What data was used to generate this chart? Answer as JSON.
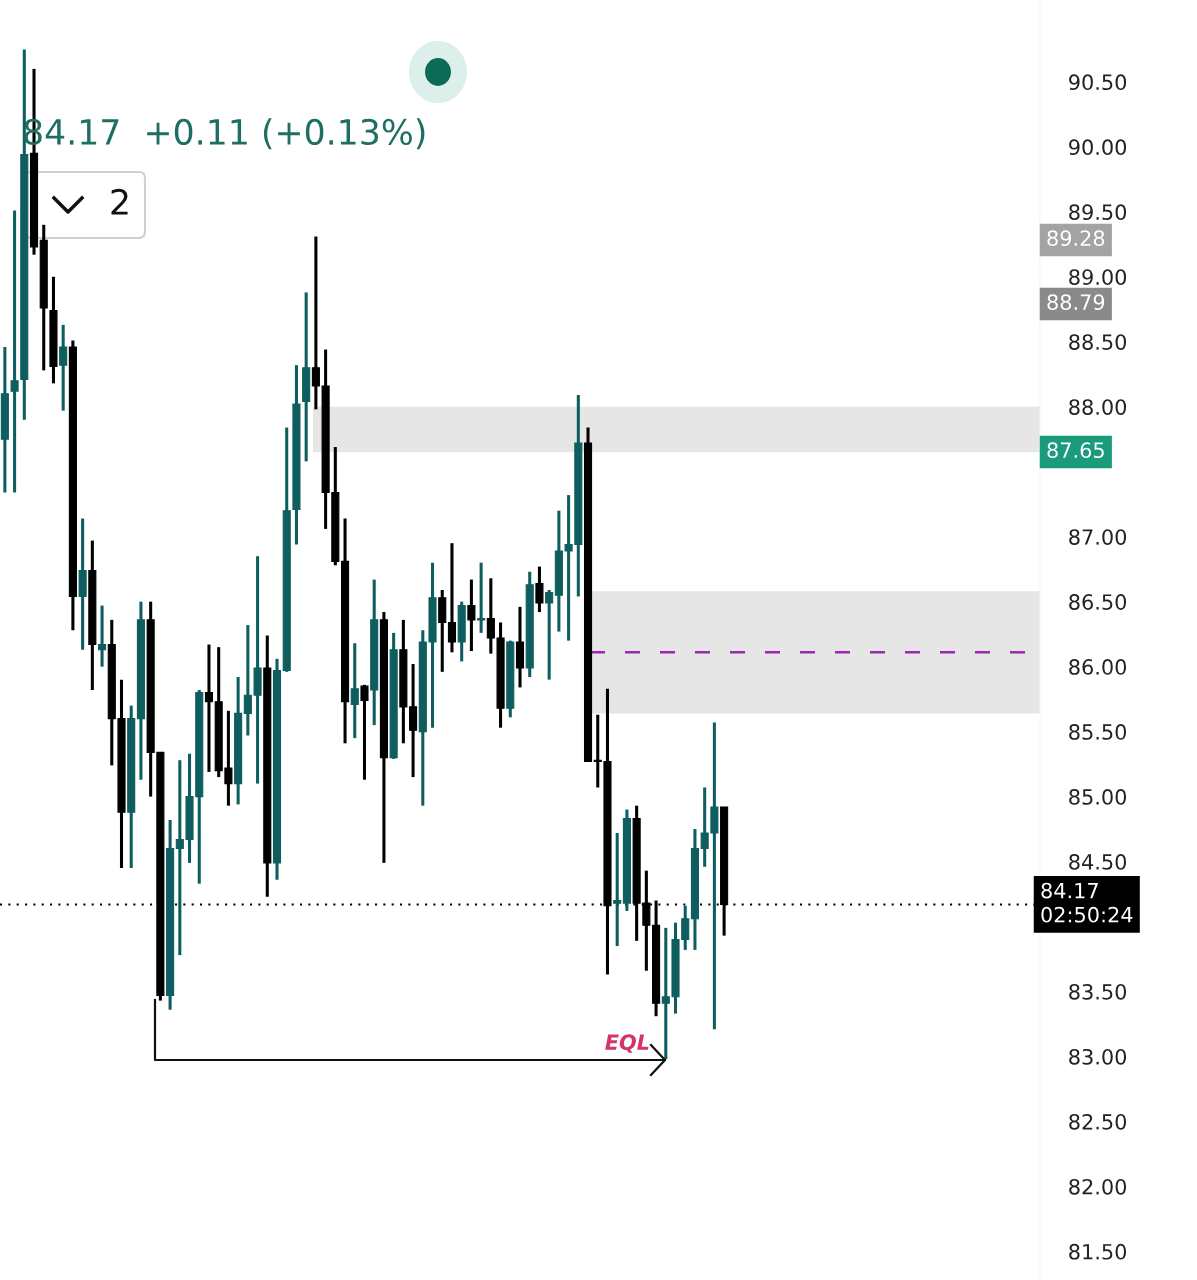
{
  "chart_data": {
    "type": "candlestick",
    "subtitle": "84.17  +0.11 (+0.13%)",
    "categories": [
      null,
      null,
      null,
      null,
      null,
      null,
      null,
      null,
      null,
      null,
      null,
      null,
      null,
      null,
      null,
      null,
      null,
      null,
      null,
      null,
      null,
      null,
      null,
      null,
      null,
      null,
      null,
      null,
      null,
      null,
      null,
      null,
      null,
      null,
      null,
      null,
      null,
      null,
      null,
      null,
      null,
      null,
      null,
      null,
      null,
      null,
      null,
      null,
      null,
      null,
      null,
      null,
      null,
      null,
      null,
      null,
      null,
      null,
      null,
      null,
      null,
      null,
      null,
      null,
      null,
      null,
      null,
      null,
      null,
      null,
      null,
      null,
      null,
      null,
      null,
      null,
      null,
      null,
      null,
      null,
      null,
      null,
      null,
      null,
      null,
      null,
      null,
      null,
      null,
      null,
      null,
      null,
      null,
      null,
      null,
      null,
      null,
      null,
      null,
      null,
      null,
      null,
      null,
      null,
      null,
      null,
      null
    ],
    "ohlc": [
      [
        87.75,
        88.46,
        87.34,
        88.1
      ],
      [
        88.12,
        89.51,
        87.34,
        88.2
      ],
      [
        88.21,
        90.75,
        87.9,
        89.94
      ],
      [
        89.95,
        90.6,
        89.17,
        89.23
      ],
      [
        89.28,
        89.4,
        88.28,
        88.76
      ],
      [
        88.74,
        89.0,
        88.18,
        88.31
      ],
      [
        88.32,
        88.63,
        87.97,
        88.46
      ],
      [
        88.46,
        88.51,
        86.28,
        86.54
      ],
      [
        86.54,
        87.14,
        86.13,
        86.74
      ],
      [
        86.74,
        86.97,
        85.82,
        86.17
      ],
      [
        86.13,
        86.47,
        86.0,
        86.17
      ],
      [
        86.17,
        86.36,
        85.24,
        85.6
      ],
      [
        85.6,
        85.9,
        84.45,
        84.88
      ],
      [
        84.88,
        85.7,
        84.45,
        85.6
      ],
      [
        85.6,
        86.5,
        85.13,
        86.36
      ],
      [
        86.36,
        86.5,
        85.0,
        85.34
      ],
      [
        85.34,
        85.34,
        83.43,
        83.47
      ],
      [
        83.47,
        84.82,
        83.36,
        84.6
      ],
      [
        84.6,
        85.28,
        83.78,
        84.67
      ],
      [
        84.67,
        85.33,
        84.49,
        85.0
      ],
      [
        85.0,
        85.82,
        84.33,
        85.8
      ],
      [
        85.8,
        86.17,
        85.19,
        85.73
      ],
      [
        85.73,
        86.15,
        85.15,
        85.2
      ],
      [
        85.22,
        85.66,
        84.93,
        85.1
      ],
      [
        85.1,
        85.92,
        84.94,
        85.64
      ],
      [
        85.64,
        86.32,
        85.47,
        85.78
      ],
      [
        85.78,
        86.85,
        85.1,
        85.99
      ],
      [
        85.99,
        86.24,
        84.23,
        84.49
      ],
      [
        84.49,
        86.06,
        84.36,
        85.97
      ],
      [
        85.97,
        87.84,
        85.96,
        87.2
      ],
      [
        87.21,
        88.32,
        86.94,
        88.02
      ],
      [
        88.04,
        88.88,
        87.58,
        88.3
      ],
      [
        88.3,
        89.31,
        87.98,
        88.16
      ],
      [
        88.16,
        88.44,
        87.06,
        87.34
      ],
      [
        87.34,
        87.69,
        86.78,
        86.81
      ],
      [
        86.81,
        87.14,
        85.41,
        85.73
      ],
      [
        85.71,
        86.18,
        85.45,
        85.83
      ],
      [
        85.85,
        85.86,
        85.13,
        85.74
      ],
      [
        85.82,
        86.67,
        85.55,
        86.36
      ],
      [
        86.36,
        86.42,
        84.49,
        85.3
      ],
      [
        85.3,
        86.26,
        85.29,
        86.13
      ],
      [
        86.13,
        86.36,
        85.41,
        85.69
      ],
      [
        85.69,
        86.02,
        85.15,
        85.51
      ],
      [
        85.5,
        86.28,
        84.93,
        86.19
      ],
      [
        86.19,
        86.8,
        85.53,
        86.53
      ],
      [
        86.53,
        86.59,
        85.96,
        86.34
      ],
      [
        86.34,
        86.95,
        86.11,
        86.19
      ],
      [
        86.19,
        86.5,
        86.04,
        86.47
      ],
      [
        86.47,
        86.67,
        86.12,
        86.36
      ],
      [
        86.36,
        86.8,
        86.26,
        86.37
      ],
      [
        86.37,
        86.68,
        86.1,
        86.22
      ],
      [
        86.22,
        86.34,
        85.53,
        85.68
      ],
      [
        85.68,
        86.2,
        85.61,
        86.19
      ],
      [
        86.19,
        86.46,
        85.84,
        85.99
      ],
      [
        85.99,
        86.73,
        85.92,
        86.63
      ],
      [
        86.64,
        86.77,
        86.42,
        86.49
      ],
      [
        86.49,
        86.59,
        85.9,
        86.57
      ],
      [
        86.55,
        87.2,
        86.27,
        86.89
      ],
      [
        86.89,
        87.32,
        86.2,
        86.94
      ],
      [
        86.94,
        88.09,
        86.54,
        87.72
      ],
      [
        87.72,
        87.84,
        85.27,
        85.27
      ],
      [
        85.28,
        85.63,
        85.07,
        85.27
      ],
      [
        85.27,
        85.83,
        83.63,
        84.16
      ],
      [
        84.18,
        84.72,
        83.85,
        84.2
      ],
      [
        84.18,
        84.9,
        84.12,
        84.83
      ],
      [
        84.83,
        84.93,
        83.89,
        84.18
      ],
      [
        84.18,
        84.43,
        83.66,
        84.01
      ],
      [
        84.01,
        84.2,
        83.31,
        83.41
      ],
      [
        83.41,
        83.99,
        82.98,
        83.46
      ],
      [
        83.46,
        84.03,
        83.33,
        83.9
      ],
      [
        83.9,
        84.16,
        83.82,
        84.06
      ],
      [
        84.06,
        84.75,
        83.82,
        84.6
      ],
      [
        84.6,
        85.07,
        84.46,
        84.72
      ],
      [
        84.72,
        85.57,
        83.21,
        84.92
      ],
      [
        84.92,
        84.92,
        83.93,
        84.17
      ],
      null,
      null,
      null,
      null,
      null,
      null,
      null,
      null,
      null,
      null,
      null,
      null,
      null,
      null,
      null,
      null,
      null,
      null,
      null,
      null,
      null,
      null,
      null,
      null,
      null,
      null,
      null,
      null,
      null,
      null,
      null,
      null
    ],
    "colors": [
      "#0f5e5f",
      "#0f5e5f",
      "#0f5e5f",
      "#000000",
      "#000000",
      "#000000",
      "#0f5e5f",
      "#000000",
      "#0f5e5f",
      "#000000",
      "#0f5e5f",
      "#000000",
      "#000000",
      "#0f5e5f",
      "#0f5e5f",
      "#000000",
      "#000000",
      "#0f5e5f",
      "#0f5e5f",
      "#0f5e5f",
      "#0f5e5f",
      "#000000",
      "#000000",
      "#000000",
      "#0f5e5f",
      "#0f5e5f",
      "#0f5e5f",
      "#000000",
      "#0f5e5f",
      "#0f5e5f",
      "#0f5e5f",
      "#0f5e5f",
      "#000000",
      "#000000",
      "#000000",
      "#000000",
      "#0f5e5f",
      "#000000",
      "#0f5e5f",
      "#000000",
      "#0f5e5f",
      "#000000",
      "#000000",
      "#0f5e5f",
      "#0f5e5f",
      "#000000",
      "#000000",
      "#0f5e5f",
      "#000000",
      "#0f5e5f",
      "#000000",
      "#000000",
      "#0f5e5f",
      "#000000",
      "#0f5e5f",
      "#000000",
      "#0f5e5f",
      "#0f5e5f",
      "#0f5e5f",
      "#0f5e5f",
      "#000000",
      "#000000",
      "#000000",
      "#0f5e5f",
      "#0f5e5f",
      "#000000",
      "#000000",
      "#000000",
      "#0f5e5f",
      "#0f5e5f",
      "#0f5e5f",
      "#0f5e5f",
      "#0f5e5f",
      "#0f5e5f",
      "#000000",
      null,
      null,
      null,
      null,
      null,
      null,
      null,
      null,
      null,
      null,
      null,
      null,
      null,
      null,
      null,
      null,
      null,
      null,
      null,
      null,
      null,
      null,
      null,
      null,
      null,
      null,
      null,
      null,
      null,
      null,
      null,
      null
    ],
    "ylim": [
      81.28,
      91.13
    ],
    "yticks": [
      {
        "value": 81.5,
        "label": "81.50"
      },
      {
        "value": 82.0,
        "label": "82.00"
      },
      {
        "value": 82.5,
        "label": "82.50"
      },
      {
        "value": 83.0,
        "label": "83.00"
      },
      {
        "value": 83.5,
        "label": "83.50"
      },
      {
        "value": 84.5,
        "label": "84.50"
      },
      {
        "value": 85.0,
        "label": "85.00"
      },
      {
        "value": 85.5,
        "label": "85.50"
      },
      {
        "value": 86.0,
        "label": "86.00"
      },
      {
        "value": 86.5,
        "label": "86.50"
      },
      {
        "value": 87.0,
        "label": "87.00"
      },
      {
        "value": 88.0,
        "label": "88.00"
      },
      {
        "value": 88.5,
        "label": "88.50"
      },
      {
        "value": 89.0,
        "label": "89.00"
      },
      {
        "value": 89.5,
        "label": "89.50"
      },
      {
        "value": 90.0,
        "label": "90.00"
      },
      {
        "value": 90.5,
        "label": "90.50"
      }
    ],
    "tick_labels": "y",
    "bands": [
      {
        "axis": "y",
        "from": 87.65,
        "to": 88.0,
        "color": "#e6e6e6"
      },
      {
        "axis": "y",
        "from": 85.64,
        "to": 86.58,
        "color": "#e6e6e6"
      }
    ],
    "ref_lines": [
      {
        "axis": "y",
        "value": 86.11,
        "color": "#9c27b0",
        "line_style": "dashed"
      },
      {
        "axis": "y",
        "value": 84.17,
        "label": "84.17\n02:50:24",
        "color": "#000000",
        "line_style": "dotted"
      }
    ],
    "annotations": [
      "2",
      "EQL",
      "89.28",
      "88.79",
      "87.65"
    ]
  }
}
